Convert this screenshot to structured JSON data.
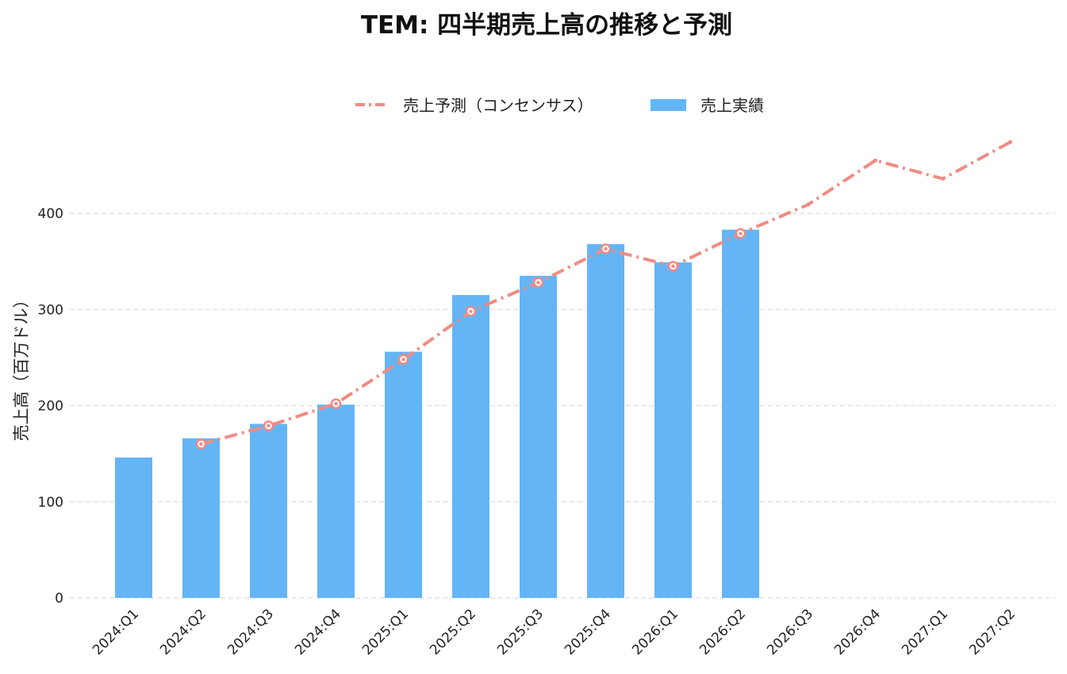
{
  "chart_data": {
    "type": "bar",
    "title": "TEM: 四半期売上高の推移と予測",
    "xlabel": "",
    "ylabel": "売上高（百万ドル）",
    "categories": [
      "2024:Q1",
      "2024:Q2",
      "2024:Q3",
      "2024:Q4",
      "2025:Q1",
      "2025:Q2",
      "2025:Q3",
      "2025:Q4",
      "2026:Q1",
      "2026:Q2",
      "2026:Q3",
      "2026:Q4",
      "2027:Q1",
      "2027:Q2"
    ],
    "ylim": [
      0,
      475
    ],
    "yticks": [
      0,
      100,
      200,
      300,
      400
    ],
    "grid": true,
    "legend_position": "top-center",
    "series": [
      {
        "name": "売上予測（コンセンサス）",
        "kind": "line",
        "style": "dash-dot",
        "color": "#f28b82",
        "values": [
          null,
          160,
          179,
          202,
          248,
          298,
          328,
          363,
          345,
          379,
          409,
          455,
          436,
          474
        ]
      },
      {
        "name": "売上実績",
        "kind": "bar",
        "color": "#64b5f6",
        "values": [
          146,
          166,
          181,
          201,
          256,
          315,
          335,
          368,
          349,
          383,
          null,
          null,
          null,
          null
        ]
      }
    ]
  }
}
